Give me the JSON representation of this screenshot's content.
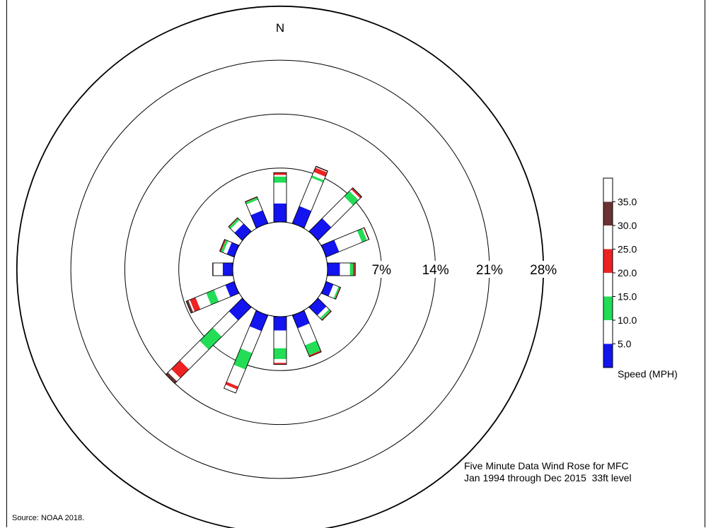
{
  "chart_data": {
    "type": "wind-rose",
    "north_label": "N",
    "ring_labels": [
      "7%",
      "14%",
      "21%",
      "28%"
    ],
    "ring_values": [
      7,
      14,
      21,
      28
    ],
    "calm_center": true,
    "directions": [
      0,
      22.5,
      45,
      67.5,
      90,
      112.5,
      135,
      157.5,
      180,
      202.5,
      225,
      247.5,
      270,
      292.5,
      315,
      337.5
    ],
    "speed_bins": [
      "0-5",
      "5-10",
      "10-15",
      "15-20",
      "20-25",
      "25-30",
      "30-35",
      "35+"
    ],
    "bin_colors": [
      "#1414f0",
      "#ffffff",
      "#22dd55",
      "#ffffff",
      "#ee2222",
      "#ffffff",
      "#6a3232",
      "#ffffff"
    ],
    "frequencies": [
      [
        2.4,
        2.7,
        0.8,
        0.2,
        0.3,
        0.0,
        0.0,
        0.0
      ],
      [
        2.4,
        4.0,
        0.3,
        0.5,
        0.6,
        0.1,
        0.1,
        0.0
      ],
      [
        2.4,
        4.0,
        1.0,
        0.3,
        0.2,
        0.0,
        0.1,
        0.0
      ],
      [
        1.8,
        3.2,
        0.7,
        0.2,
        0.1,
        0.0,
        0.0,
        0.0
      ],
      [
        1.6,
        1.3,
        0.4,
        0.0,
        0.2,
        0.0,
        0.1,
        0.0
      ],
      [
        1.0,
        0.7,
        0.2,
        0.0,
        0.1,
        0.0,
        0.0,
        0.0
      ],
      [
        1.5,
        0.5,
        0.3,
        0.0,
        0.1,
        0.0,
        0.0,
        0.0
      ],
      [
        1.8,
        2.4,
        1.4,
        0.0,
        0.2,
        0.0,
        0.0,
        0.0
      ],
      [
        1.8,
        2.3,
        1.4,
        0.5,
        0.2,
        0.0,
        0.0,
        0.0
      ],
      [
        2.2,
        3.1,
        2.3,
        2.4,
        0.4,
        0.3,
        0.0,
        0.2
      ],
      [
        2.4,
        3.0,
        2.4,
        3.6,
        1.6,
        0.6,
        0.4,
        0.0
      ],
      [
        1.2,
        1.6,
        1.1,
        1.5,
        0.8,
        0.2,
        0.3,
        0.0
      ],
      [
        1.3,
        0.8,
        0.0,
        0.4,
        0.0,
        0.0,
        0.1,
        0.0
      ],
      [
        1.0,
        0.5,
        0.3,
        0.0,
        0.1,
        0.0,
        0.1,
        0.0
      ],
      [
        1.4,
        0.7,
        0.3,
        0.0,
        0.1,
        0.0,
        0.0,
        0.0
      ],
      [
        1.8,
        1.5,
        0.3,
        0.0,
        0.1,
        0.0,
        0.0,
        0.0
      ]
    ],
    "legend": {
      "title": "Speed (MPH)",
      "labels": [
        "5.0",
        "10.0",
        "15.0",
        "20.0",
        "25.0",
        "30.0",
        "35.0"
      ]
    }
  },
  "caption": {
    "line1": "Five Minute Data Wind Rose for MFC",
    "line2": "Jan 1994 through Dec 2015  33ft level"
  },
  "source": "Source: NOAA 2018."
}
